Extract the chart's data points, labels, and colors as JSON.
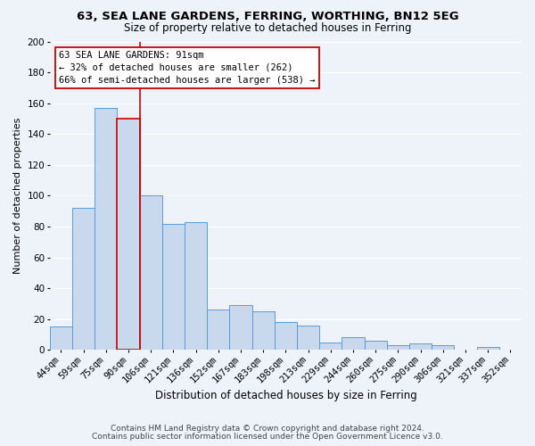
{
  "title": "63, SEA LANE GARDENS, FERRING, WORTHING, BN12 5EG",
  "subtitle": "Size of property relative to detached houses in Ferring",
  "xlabel": "Distribution of detached houses by size in Ferring",
  "ylabel": "Number of detached properties",
  "bar_labels": [
    "44sqm",
    "59sqm",
    "75sqm",
    "90sqm",
    "106sqm",
    "121sqm",
    "136sqm",
    "152sqm",
    "167sqm",
    "183sqm",
    "198sqm",
    "213sqm",
    "229sqm",
    "244sqm",
    "260sqm",
    "275sqm",
    "290sqm",
    "306sqm",
    "321sqm",
    "337sqm",
    "352sqm"
  ],
  "bar_values": [
    15,
    92,
    157,
    150,
    100,
    82,
    83,
    26,
    29,
    25,
    18,
    16,
    5,
    8,
    6,
    3,
    4,
    3,
    0,
    2,
    0
  ],
  "bar_color": "#c8d9ee",
  "bar_edge_color": "#5b9bd5",
  "highlight_bar_index": 3,
  "highlight_edge_color": "#cc0000",
  "vline_color": "#cc0000",
  "annotation_line1": "63 SEA LANE GARDENS: 91sqm",
  "annotation_line2": "← 32% of detached houses are smaller (262)",
  "annotation_line3": "66% of semi-detached houses are larger (538) →",
  "annotation_box_edge": "#cc0000",
  "annotation_box_fill": "#ffffff",
  "ylim": [
    0,
    200
  ],
  "yticks": [
    0,
    20,
    40,
    60,
    80,
    100,
    120,
    140,
    160,
    180,
    200
  ],
  "footer1": "Contains HM Land Registry data © Crown copyright and database right 2024.",
  "footer2": "Contains public sector information licensed under the Open Government Licence v3.0.",
  "background_color": "#eef3fa",
  "grid_color": "#ffffff",
  "title_fontsize": 9.5,
  "subtitle_fontsize": 8.5,
  "xlabel_fontsize": 8.5,
  "ylabel_fontsize": 8,
  "tick_fontsize": 7.5,
  "annotation_fontsize": 7.5,
  "footer_fontsize": 6.5
}
